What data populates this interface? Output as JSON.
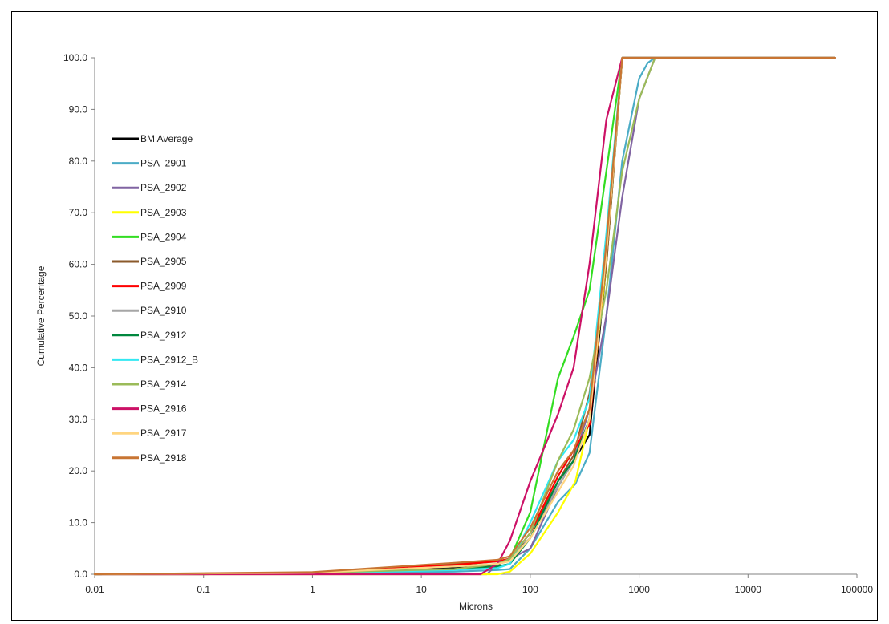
{
  "chart_data": {
    "type": "line",
    "title": "",
    "xlabel": "Microns",
    "ylabel": "Cumulative Percentage",
    "x_scale": "log",
    "xlim": [
      0.01,
      100000
    ],
    "ylim": [
      0,
      100
    ],
    "x_ticks": [
      "0.01",
      "0.1",
      "1",
      "10",
      "100",
      "1000",
      "10000",
      "100000"
    ],
    "y_ticks": [
      "0.0",
      "10.0",
      "20.0",
      "30.0",
      "40.0",
      "50.0",
      "60.0",
      "70.0",
      "80.0",
      "90.0",
      "100.0"
    ],
    "grid": false,
    "legend_position": "left",
    "series": [
      {
        "name": "BM Average",
        "color": "#000000",
        "points": [
          [
            0.01,
            0
          ],
          [
            0.1,
            0
          ],
          [
            1,
            0.3
          ],
          [
            5,
            0.8
          ],
          [
            20,
            1.2
          ],
          [
            45,
            1.5
          ],
          [
            60,
            2.5
          ],
          [
            100,
            7
          ],
          [
            180,
            17
          ],
          [
            250,
            22
          ],
          [
            350,
            27
          ],
          [
            500,
            60
          ],
          [
            700,
            100
          ],
          [
            1400,
            100
          ],
          [
            63000,
            100
          ]
        ]
      },
      {
        "name": "PSA_2901",
        "color": "#4BACC6",
        "points": [
          [
            0.01,
            0
          ],
          [
            1,
            0.2
          ],
          [
            20,
            0.5
          ],
          [
            50,
            0.8
          ],
          [
            65,
            1
          ],
          [
            100,
            5
          ],
          [
            180,
            14
          ],
          [
            260,
            17.5
          ],
          [
            350,
            23.5
          ],
          [
            500,
            50
          ],
          [
            700,
            80
          ],
          [
            1000,
            96
          ],
          [
            1200,
            99
          ],
          [
            1400,
            100
          ],
          [
            63000,
            100
          ]
        ]
      },
      {
        "name": "PSA_2902",
        "color": "#8064A2",
        "points": [
          [
            0.01,
            0
          ],
          [
            40,
            0
          ],
          [
            50,
            2
          ],
          [
            60,
            2.6
          ],
          [
            100,
            5
          ],
          [
            180,
            17
          ],
          [
            250,
            22
          ],
          [
            350,
            32
          ],
          [
            500,
            50
          ],
          [
            700,
            73
          ],
          [
            1000,
            92
          ],
          [
            1400,
            100
          ],
          [
            63000,
            100
          ]
        ]
      },
      {
        "name": "PSA_2903",
        "color": "#FFFF00",
        "points": [
          [
            0.01,
            0
          ],
          [
            50,
            0
          ],
          [
            65,
            0.5
          ],
          [
            100,
            4
          ],
          [
            180,
            12
          ],
          [
            260,
            18
          ],
          [
            350,
            30
          ],
          [
            500,
            60
          ],
          [
            700,
            100
          ],
          [
            63000,
            100
          ]
        ]
      },
      {
        "name": "PSA_2904",
        "color": "#33DD22",
        "points": [
          [
            0.01,
            0
          ],
          [
            1,
            0.3
          ],
          [
            10,
            1.2
          ],
          [
            50,
            2.5
          ],
          [
            65,
            3
          ],
          [
            100,
            12
          ],
          [
            180,
            38
          ],
          [
            250,
            46
          ],
          [
            350,
            55
          ],
          [
            500,
            78
          ],
          [
            700,
            100
          ],
          [
            63000,
            100
          ]
        ]
      },
      {
        "name": "PSA_2905",
        "color": "#8B5A2B",
        "points": [
          [
            0.01,
            0
          ],
          [
            1,
            0.3
          ],
          [
            20,
            2
          ],
          [
            50,
            2.5
          ],
          [
            65,
            3
          ],
          [
            100,
            8
          ],
          [
            180,
            18
          ],
          [
            250,
            23
          ],
          [
            350,
            35
          ],
          [
            500,
            60
          ],
          [
            700,
            100
          ],
          [
            63000,
            100
          ]
        ]
      },
      {
        "name": "PSA_2909",
        "color": "#FF0000",
        "points": [
          [
            0.01,
            0
          ],
          [
            1,
            0.3
          ],
          [
            20,
            1.8
          ],
          [
            50,
            2.5
          ],
          [
            65,
            3
          ],
          [
            100,
            8
          ],
          [
            180,
            19
          ],
          [
            250,
            24
          ],
          [
            350,
            29
          ],
          [
            500,
            62
          ],
          [
            700,
            100
          ],
          [
            63000,
            100
          ]
        ]
      },
      {
        "name": "PSA_2910",
        "color": "#A6A6A6",
        "points": [
          [
            0.01,
            0
          ],
          [
            1,
            0.3
          ],
          [
            20,
            1.5
          ],
          [
            50,
            2
          ],
          [
            65,
            3
          ],
          [
            100,
            7
          ],
          [
            180,
            17
          ],
          [
            250,
            22
          ],
          [
            350,
            30
          ],
          [
            500,
            62
          ],
          [
            700,
            100
          ],
          [
            63000,
            100
          ]
        ]
      },
      {
        "name": "PSA_2912",
        "color": "#00873E",
        "points": [
          [
            0.01,
            0
          ],
          [
            1,
            0.3
          ],
          [
            20,
            1
          ],
          [
            50,
            1.5
          ],
          [
            65,
            2
          ],
          [
            100,
            7
          ],
          [
            180,
            18
          ],
          [
            250,
            22
          ],
          [
            350,
            30
          ],
          [
            500,
            64
          ],
          [
            700,
            100
          ],
          [
            63000,
            100
          ]
        ]
      },
      {
        "name": "PSA_2912_B",
        "color": "#33E8F2",
        "points": [
          [
            0.01,
            0
          ],
          [
            1,
            0.2
          ],
          [
            20,
            0.8
          ],
          [
            50,
            1.2
          ],
          [
            65,
            2
          ],
          [
            100,
            10
          ],
          [
            180,
            22
          ],
          [
            250,
            26
          ],
          [
            350,
            34
          ],
          [
            500,
            66
          ],
          [
            700,
            100
          ],
          [
            63000,
            100
          ]
        ]
      },
      {
        "name": "PSA_2914",
        "color": "#9BBB59",
        "points": [
          [
            0.01,
            0
          ],
          [
            1,
            0.3
          ],
          [
            20,
            1
          ],
          [
            50,
            2
          ],
          [
            65,
            3
          ],
          [
            100,
            8
          ],
          [
            180,
            22
          ],
          [
            250,
            28
          ],
          [
            350,
            38
          ],
          [
            500,
            55
          ],
          [
            700,
            78
          ],
          [
            1000,
            92
          ],
          [
            1400,
            100
          ],
          [
            63000,
            100
          ]
        ]
      },
      {
        "name": "PSA_2916",
        "color": "#CC1166",
        "points": [
          [
            0.01,
            0
          ],
          [
            35,
            0
          ],
          [
            50,
            2
          ],
          [
            65,
            6.5
          ],
          [
            100,
            18
          ],
          [
            180,
            31
          ],
          [
            250,
            40
          ],
          [
            350,
            60
          ],
          [
            500,
            88
          ],
          [
            700,
            100
          ],
          [
            63000,
            100
          ]
        ]
      },
      {
        "name": "PSA_2917",
        "color": "#FFD580",
        "points": [
          [
            0.01,
            0
          ],
          [
            1,
            0.3
          ],
          [
            20,
            1.5
          ],
          [
            50,
            2
          ],
          [
            65,
            2.5
          ],
          [
            100,
            7
          ],
          [
            180,
            16
          ],
          [
            250,
            21
          ],
          [
            350,
            30
          ],
          [
            500,
            62
          ],
          [
            700,
            100
          ],
          [
            63000,
            100
          ]
        ]
      },
      {
        "name": "PSA_2918",
        "color": "#C87533",
        "points": [
          [
            0.01,
            0
          ],
          [
            1,
            0.4
          ],
          [
            20,
            2.2
          ],
          [
            50,
            2.8
          ],
          [
            65,
            3.5
          ],
          [
            100,
            9
          ],
          [
            180,
            20
          ],
          [
            250,
            24
          ],
          [
            350,
            32
          ],
          [
            500,
            64
          ],
          [
            700,
            100
          ],
          [
            63000,
            100
          ]
        ]
      }
    ]
  }
}
